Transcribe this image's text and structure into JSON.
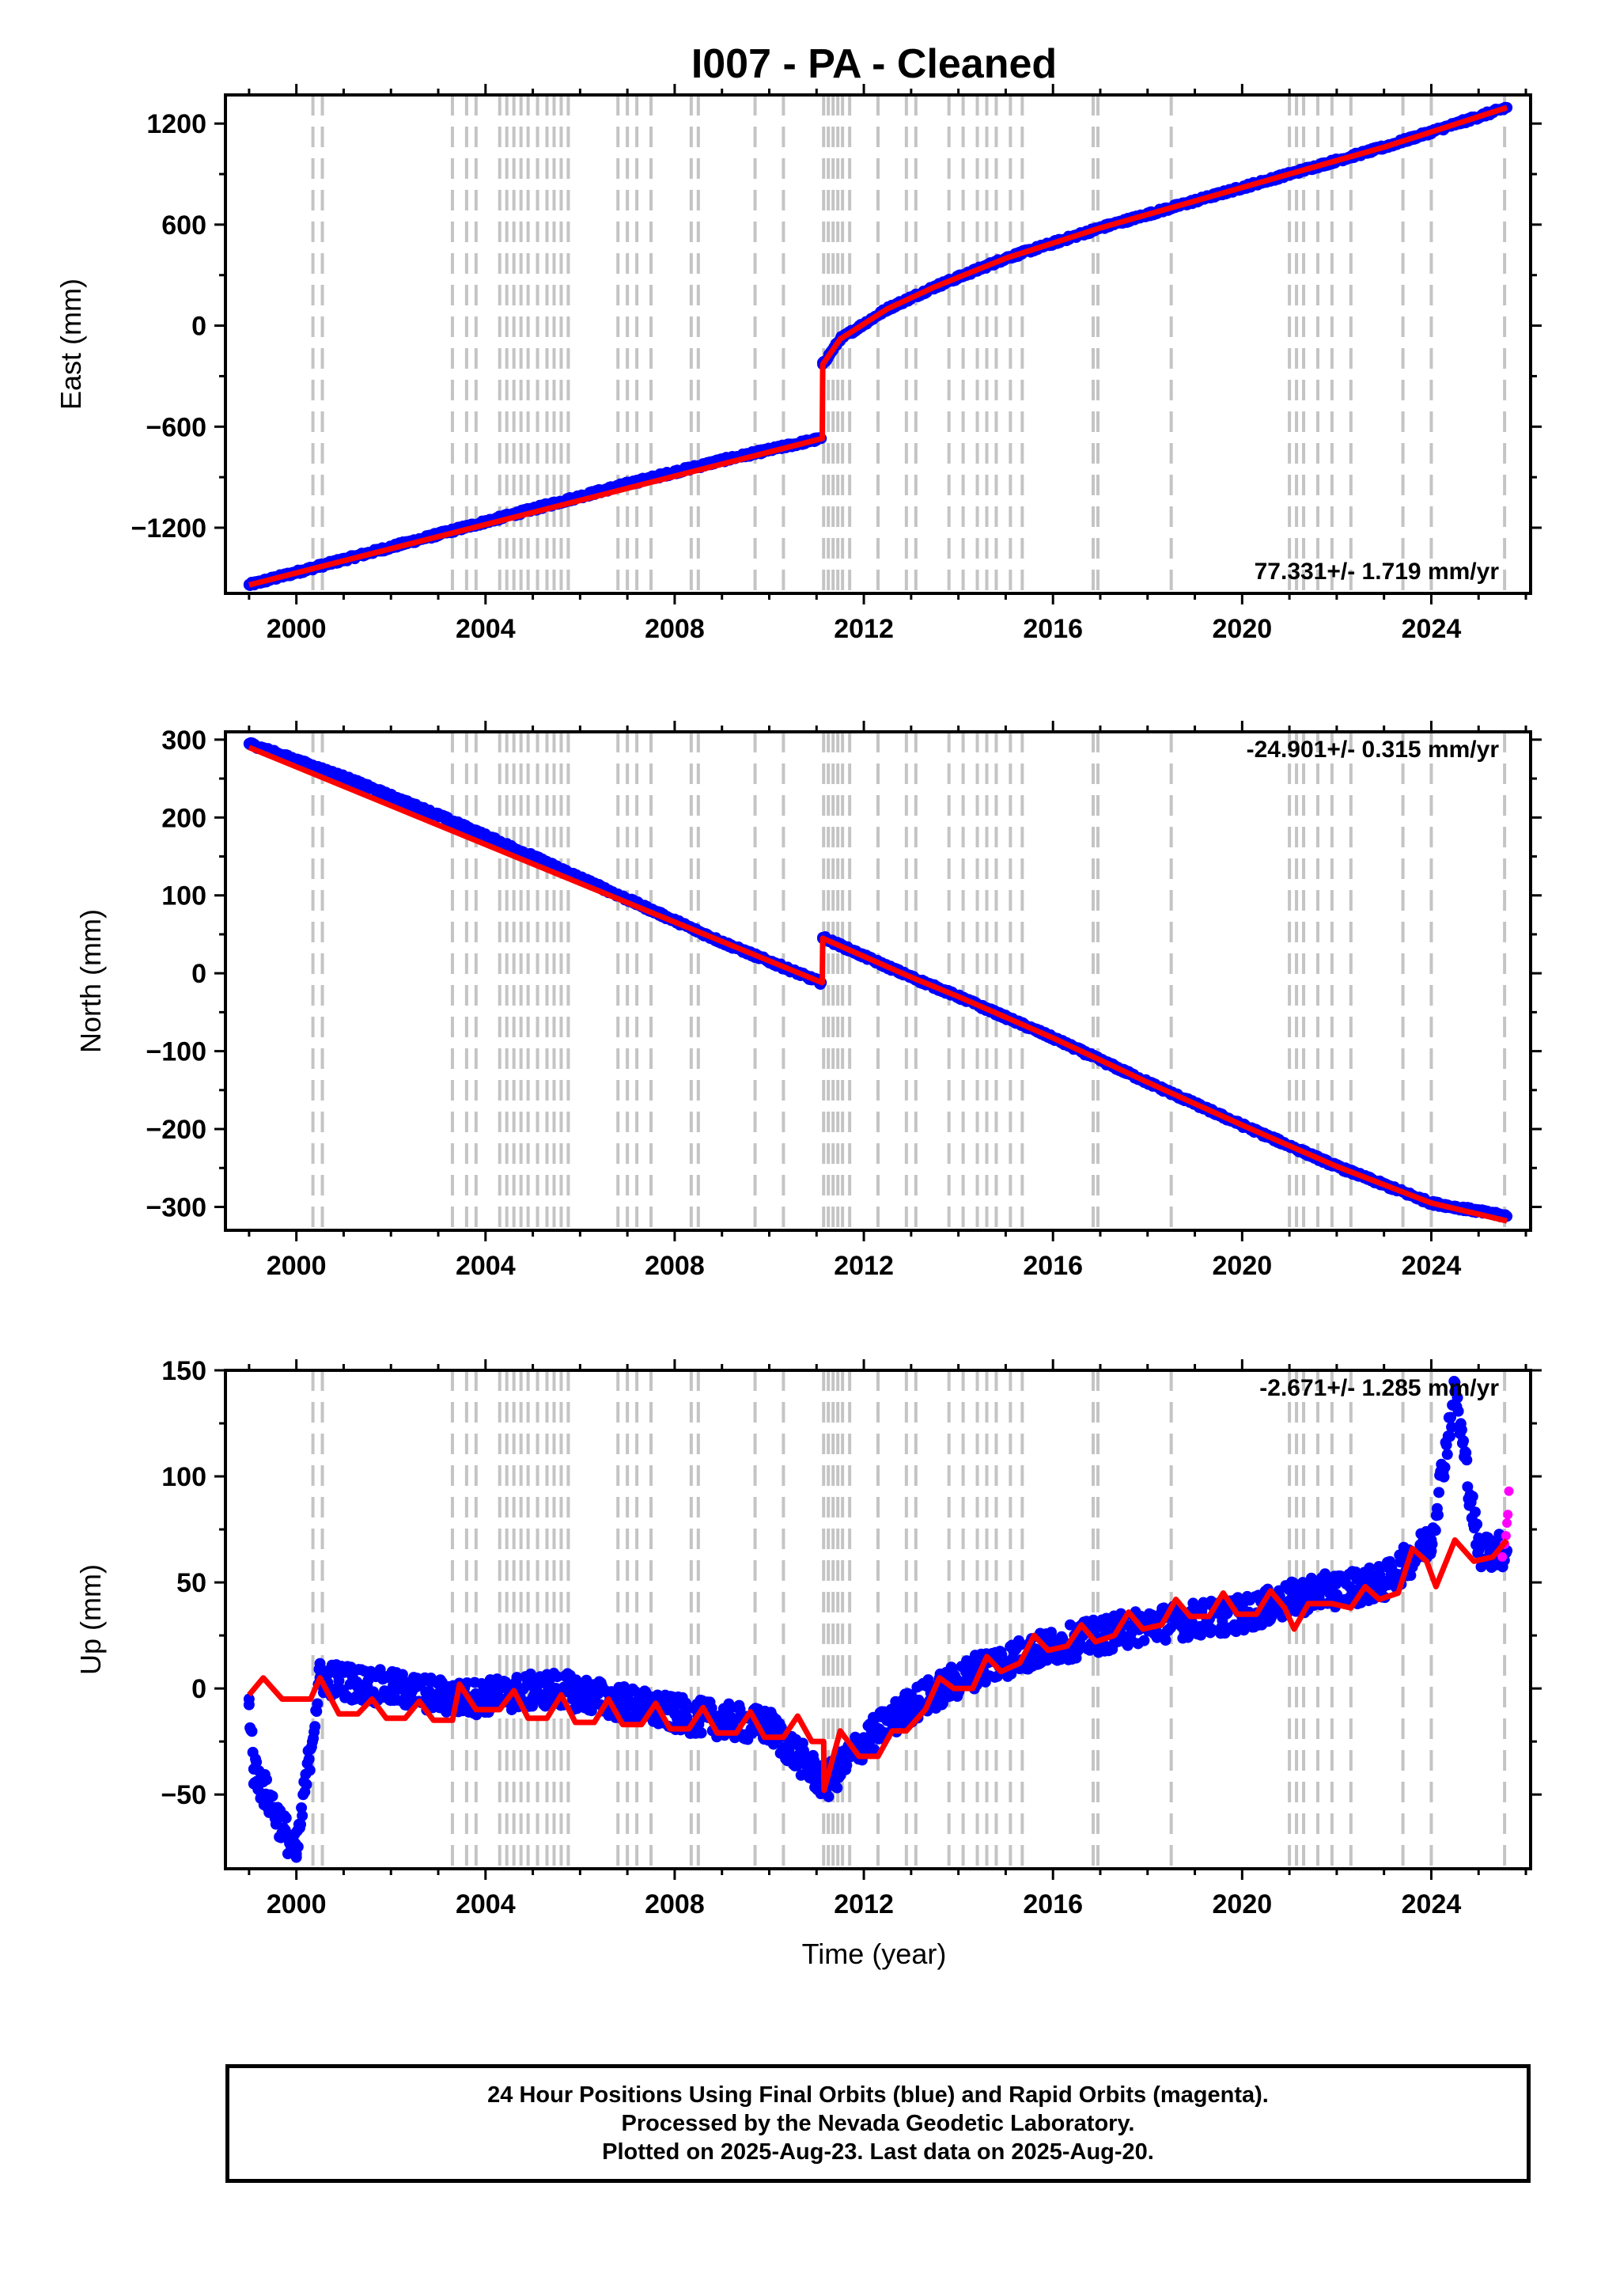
{
  "title": "I007  - PA - Cleaned",
  "xlabel": "Time (year)",
  "colors": {
    "final_orbits": "#0000ff",
    "rapid_orbits": "#ff00ff",
    "model_fit": "#ff0000",
    "event_lines": "#c4c4c4"
  },
  "footer": {
    "line1": "24 Hour Positions Using Final Orbits (blue) and Rapid Orbits (magenta).",
    "line2": "Processed by the Nevada Geodetic Laboratory.",
    "line3": "Plotted on 2025-Aug-23. Last data on 2025-Aug-20."
  },
  "chart_data": [
    {
      "type": "scatter",
      "component": "East",
      "ylabel": "East (mm)",
      "rate_label": "77.331+/- 1.719 mm/yr",
      "xlim": [
        1998.5,
        2026.1
      ],
      "ylim": [
        -1590,
        1370
      ],
      "xticks": [
        2000,
        2004,
        2008,
        2012,
        2016,
        2020,
        2024
      ],
      "yticks": [
        -1200,
        -600,
        0,
        600,
        1200
      ],
      "yticks_minor": [
        -900,
        -300,
        300,
        900
      ],
      "series": [
        {
          "points": [
            [
              1999.0,
              -1540
            ],
            [
              2001.0,
              -1390
            ],
            [
              2003.0,
              -1240
            ],
            [
              2005.0,
              -1090
            ],
            [
              2007.0,
              -940
            ],
            [
              2009.0,
              -800
            ],
            [
              2011.1,
              -670
            ],
            [
              2011.13,
              -230
            ],
            [
              2011.5,
              -80
            ],
            [
              2012.5,
              100
            ],
            [
              2013.5,
              230
            ],
            [
              2015.0,
              400
            ],
            [
              2017.0,
              580
            ],
            [
              2019.0,
              740
            ],
            [
              2021.0,
              900
            ],
            [
              2023.0,
              1060
            ],
            [
              2025.6,
              1295
            ]
          ]
        }
      ],
      "fit": [
        [
          1999.0,
          -1540
        ],
        [
          2011.12,
          -670
        ],
        [
          2011.13,
          -230
        ],
        [
          2011.5,
          -80
        ],
        [
          2012.5,
          100
        ],
        [
          2013.5,
          230
        ],
        [
          2015.0,
          400
        ],
        [
          2017.0,
          580
        ],
        [
          2019.0,
          740
        ],
        [
          2021.0,
          900
        ],
        [
          2023.0,
          1060
        ],
        [
          2025.6,
          1295
        ]
      ]
    },
    {
      "type": "scatter",
      "component": "North",
      "ylabel": "North (mm)",
      "rate_label": "-24.901+/- 0.315 mm/yr",
      "xlim": [
        1998.5,
        2026.1
      ],
      "ylim": [
        -330,
        310
      ],
      "xticks": [
        2000,
        2004,
        2008,
        2012,
        2016,
        2020,
        2024
      ],
      "yticks": [
        -300,
        -200,
        -100,
        0,
        100,
        200,
        300
      ],
      "yticks_minor": [
        -250,
        -150,
        -50,
        50,
        150,
        250
      ],
      "series": [
        {
          "points": [
            [
              1999.0,
              295
            ],
            [
              2001.0,
              252
            ],
            [
              2003.0,
              203
            ],
            [
              2005.0,
              150
            ],
            [
              2007.0,
              95
            ],
            [
              2009.0,
              40
            ],
            [
              2011.1,
              -12
            ],
            [
              2011.13,
              46
            ],
            [
              2012.0,
              22
            ],
            [
              2013.0,
              -5
            ],
            [
              2014.0,
              -30
            ],
            [
              2016.0,
              -83
            ],
            [
              2018.0,
              -140
            ],
            [
              2020.0,
              -195
            ],
            [
              2022.0,
              -248
            ],
            [
              2024.0,
              -295
            ],
            [
              2025.6,
              -312
            ]
          ]
        }
      ],
      "fit": [
        [
          1999.0,
          290
        ],
        [
          2011.12,
          -12
        ],
        [
          2011.13,
          45
        ],
        [
          2013.0,
          -5
        ],
        [
          2014.0,
          -30
        ],
        [
          2016.0,
          -83
        ],
        [
          2018.0,
          -140
        ],
        [
          2020.0,
          -195
        ],
        [
          2022.0,
          -248
        ],
        [
          2024.0,
          -295
        ],
        [
          2025.6,
          -318
        ]
      ]
    },
    {
      "type": "scatter",
      "component": "Up",
      "ylabel": "Up (mm)",
      "rate_label": "-2.671+/- 1.285 mm/yr",
      "xlim": [
        1998.5,
        2026.1
      ],
      "ylim": [
        -85,
        150
      ],
      "xticks": [
        2000,
        2004,
        2008,
        2012,
        2016,
        2020,
        2024
      ],
      "yticks": [
        -50,
        0,
        50,
        100,
        150
      ],
      "yticks_minor": [
        -25,
        25,
        75,
        125
      ],
      "series": [
        {
          "points": [
            [
              1999.0,
              -5
            ],
            [
              1999.1,
              -38
            ],
            [
              2000.0,
              -78
            ],
            [
              2000.5,
              5
            ],
            [
              2003.5,
              -5
            ],
            [
              2005.5,
              0
            ],
            [
              2008.0,
              -12
            ],
            [
              2010.0,
              -18
            ],
            [
              2011.2,
              -45
            ],
            [
              2012.0,
              -25
            ],
            [
              2013.0,
              -8
            ],
            [
              2014.5,
              10
            ],
            [
              2016.0,
              20
            ],
            [
              2018.0,
              30
            ],
            [
              2020.0,
              35
            ],
            [
              2021.5,
              45
            ],
            [
              2023.0,
              50
            ],
            [
              2024.0,
              70
            ],
            [
              2024.5,
              140
            ],
            [
              2025.0,
              65
            ],
            [
              2025.6,
              65
            ]
          ]
        },
        {
          "points": [
            [
              2025.5,
              62
            ],
            [
              2025.55,
              68
            ],
            [
              2025.58,
              72
            ],
            [
              2025.6,
              78
            ],
            [
              2025.62,
              82
            ],
            [
              2025.64,
              93
            ]
          ]
        }
      ],
      "fit": [
        [
          1999.0,
          -3
        ],
        [
          1999.3,
          5
        ],
        [
          1999.7,
          -5
        ],
        [
          2000.3,
          -5
        ],
        [
          2000.5,
          5
        ],
        [
          2000.9,
          -12
        ],
        [
          2001.3,
          -12
        ],
        [
          2001.6,
          -5
        ],
        [
          2001.9,
          -14
        ],
        [
          2002.3,
          -14
        ],
        [
          2002.6,
          -6
        ],
        [
          2002.9,
          -15
        ],
        [
          2003.3,
          -15
        ],
        [
          2003.45,
          2
        ],
        [
          2003.8,
          -10
        ],
        [
          2004.3,
          -10
        ],
        [
          2004.6,
          -1
        ],
        [
          2004.9,
          -14
        ],
        [
          2005.3,
          -14
        ],
        [
          2005.6,
          -3
        ],
        [
          2005.9,
          -16
        ],
        [
          2006.3,
          -16
        ],
        [
          2006.6,
          -5
        ],
        [
          2006.9,
          -17
        ],
        [
          2007.3,
          -17
        ],
        [
          2007.6,
          -7
        ],
        [
          2007.9,
          -19
        ],
        [
          2008.3,
          -19
        ],
        [
          2008.6,
          -9
        ],
        [
          2008.9,
          -21
        ],
        [
          2009.3,
          -21
        ],
        [
          2009.6,
          -11
        ],
        [
          2009.9,
          -23
        ],
        [
          2010.3,
          -23
        ],
        [
          2010.6,
          -13
        ],
        [
          2010.9,
          -25
        ],
        [
          2011.15,
          -25
        ],
        [
          2011.16,
          -48
        ],
        [
          2011.5,
          -20
        ],
        [
          2011.9,
          -32
        ],
        [
          2012.3,
          -32
        ],
        [
          2012.6,
          -20
        ],
        [
          2012.9,
          -20
        ],
        [
          2013.3,
          -10
        ],
        [
          2013.6,
          5
        ],
        [
          2013.9,
          0
        ],
        [
          2014.3,
          0
        ],
        [
          2014.6,
          15
        ],
        [
          2014.9,
          8
        ],
        [
          2015.3,
          12
        ],
        [
          2015.6,
          25
        ],
        [
          2015.9,
          18
        ],
        [
          2016.3,
          20
        ],
        [
          2016.6,
          30
        ],
        [
          2016.9,
          22
        ],
        [
          2017.3,
          25
        ],
        [
          2017.6,
          36
        ],
        [
          2017.9,
          28
        ],
        [
          2018.3,
          30
        ],
        [
          2018.6,
          42
        ],
        [
          2018.9,
          34
        ],
        [
          2019.3,
          34
        ],
        [
          2019.6,
          45
        ],
        [
          2019.9,
          35
        ],
        [
          2020.3,
          35
        ],
        [
          2020.6,
          46
        ],
        [
          2020.9,
          38
        ],
        [
          2021.1,
          28
        ],
        [
          2021.4,
          40
        ],
        [
          2021.9,
          40
        ],
        [
          2022.3,
          38
        ],
        [
          2022.6,
          48
        ],
        [
          2022.9,
          42
        ],
        [
          2023.3,
          45
        ],
        [
          2023.6,
          66
        ],
        [
          2023.9,
          60
        ],
        [
          2024.1,
          48
        ],
        [
          2024.5,
          70
        ],
        [
          2024.9,
          60
        ],
        [
          2025.3,
          62
        ],
        [
          2025.6,
          70
        ]
      ]
    }
  ],
  "event_lines": [
    2000.35,
    2000.55,
    2003.3,
    2003.6,
    2003.8,
    2004.3,
    2004.45,
    2004.6,
    2004.75,
    2004.9,
    2005.1,
    2005.3,
    2005.45,
    2005.6,
    2005.75,
    2006.8,
    2007.0,
    2007.2,
    2007.5,
    2008.35,
    2008.5,
    2009.7,
    2010.3,
    2011.15,
    2011.25,
    2011.35,
    2011.45,
    2011.55,
    2011.7,
    2012.3,
    2012.9,
    2013.1,
    2013.8,
    2014.1,
    2014.4,
    2014.6,
    2014.8,
    2015.1,
    2015.35,
    2016.85,
    2016.95,
    2018.5,
    2021.0,
    2021.15,
    2021.3,
    2021.6,
    2021.9,
    2022.3,
    2023.4,
    2024.0,
    2025.55
  ]
}
